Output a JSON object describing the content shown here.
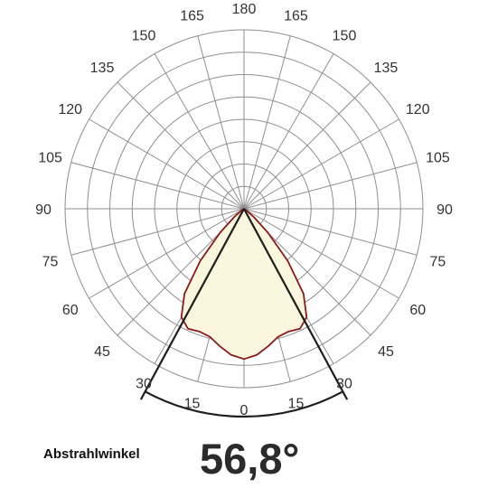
{
  "chart_data": {
    "type": "polar",
    "angle_labels_left": [
      "15",
      "30",
      "45",
      "60",
      "75",
      "90",
      "105",
      "120",
      "135",
      "150",
      "165"
    ],
    "angle_labels_right": [
      "15",
      "30",
      "45",
      "60",
      "75",
      "90",
      "105",
      "120",
      "135",
      "150",
      "165"
    ],
    "angle_label_zero": "0",
    "angle_label_top": "180",
    "angle_step_deg": 15,
    "ring_count": 8,
    "beam_angle_deg": 56.8,
    "distribution": {
      "name": "",
      "angles_deg": [
        0,
        5,
        10,
        15,
        20,
        25,
        30,
        35,
        40,
        45,
        50,
        55,
        60,
        90,
        180
      ],
      "relative_intensity": [
        0.84,
        0.82,
        0.78,
        0.74,
        0.73,
        0.74,
        0.7,
        0.58,
        0.38,
        0.19,
        0.07,
        0.02,
        0.0,
        0.0,
        0.0
      ]
    },
    "colors": {
      "grid": "#8f8f8f",
      "curve_stroke": "#8b1a1a",
      "curve_fill": "#fbf6de",
      "beam_lines": "#1e1e1e"
    }
  },
  "footer": {
    "label": "Abstrahlwinkel",
    "value": "56,8°"
  }
}
